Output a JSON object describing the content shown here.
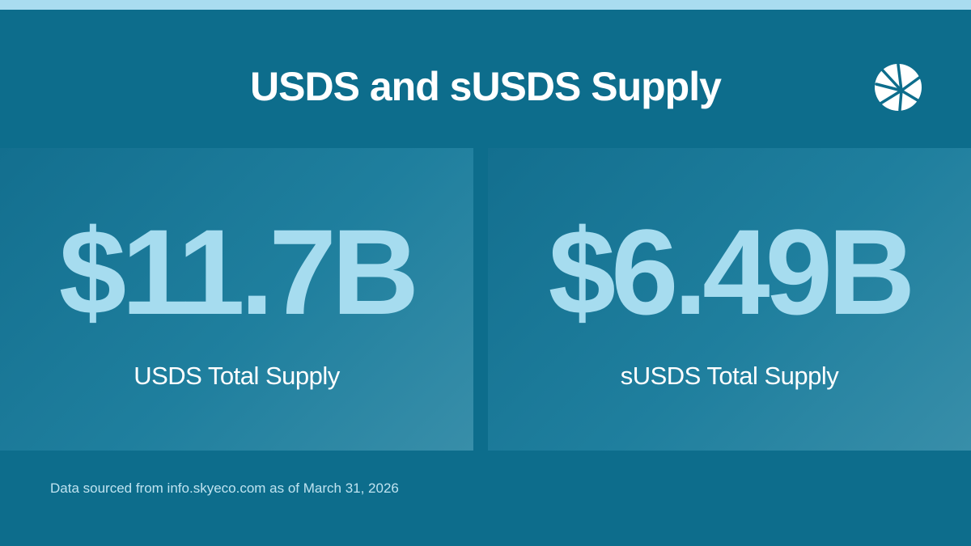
{
  "header": {
    "title": "USDS and sUSDS Supply"
  },
  "cards": [
    {
      "value": "$11.7B",
      "label": "USDS Total Supply"
    },
    {
      "value": "$6.49B",
      "label": "sUSDS Total Supply"
    }
  ],
  "footer": {
    "source": "Data sourced from info.skyeco.com as of March 31, 2026"
  }
}
